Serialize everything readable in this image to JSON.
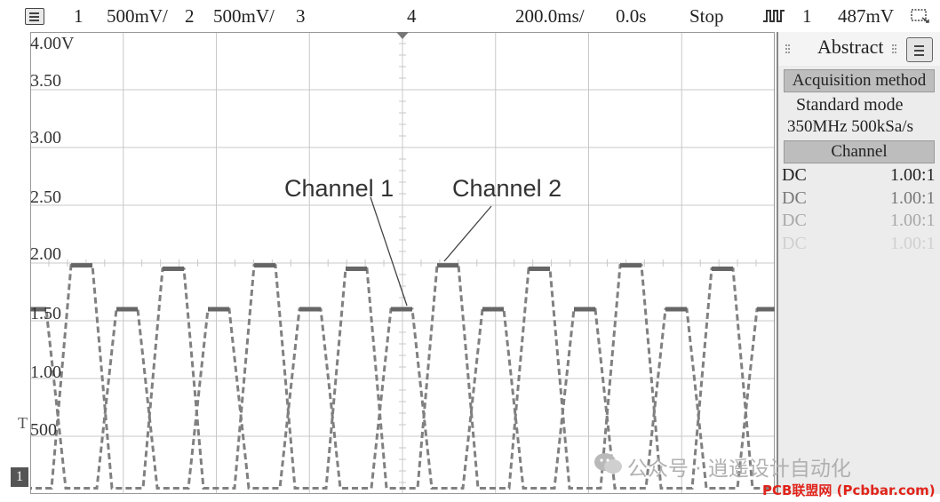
{
  "status_bar": {
    "ch1_label": "1",
    "ch1_scale": "500mV/",
    "ch2_label": "2",
    "ch2_scale": "500mV/",
    "ch3_label": "3",
    "ch4_label": "4",
    "timebase": "200.0ms/",
    "offset": "0.0s",
    "run_state": "Stop",
    "trigger_channel": "1",
    "trigger_level": "487mV"
  },
  "screen": {
    "y_labels": [
      "4.00V",
      "3.50",
      "3.00",
      "2.50",
      "2.00",
      "1.50",
      "1.00",
      "500"
    ],
    "trigger_marker": "T",
    "ground_marker": "1",
    "annotations": {
      "channel1": "Channel 1",
      "channel2": "Channel 2"
    }
  },
  "panel": {
    "tab_title": "Abstract",
    "acquisition_header": "Acquisition method",
    "mode": "Standard mode",
    "rate": "350MHz  500kSa/s",
    "channel_header": "Channel",
    "channels": [
      {
        "coupling": "DC",
        "probe": "1.00:1",
        "color": "#222222"
      },
      {
        "coupling": "DC",
        "probe": "1.00:1",
        "color": "#777777"
      },
      {
        "coupling": "DC",
        "probe": "1.00:1",
        "color": "#a8a8a8"
      },
      {
        "coupling": "DC",
        "probe": "1.00:1",
        "color": "#d0d0d0"
      }
    ]
  },
  "watermark": {
    "wechat_text": "公众号 · 逍遥设计自动化",
    "site_text": "PCB联盟网 (Pcbbar.com)"
  },
  "colors": {
    "grid": "#c8c8c8",
    "trace": "#808080",
    "site_watermark": "#e0241b"
  }
}
